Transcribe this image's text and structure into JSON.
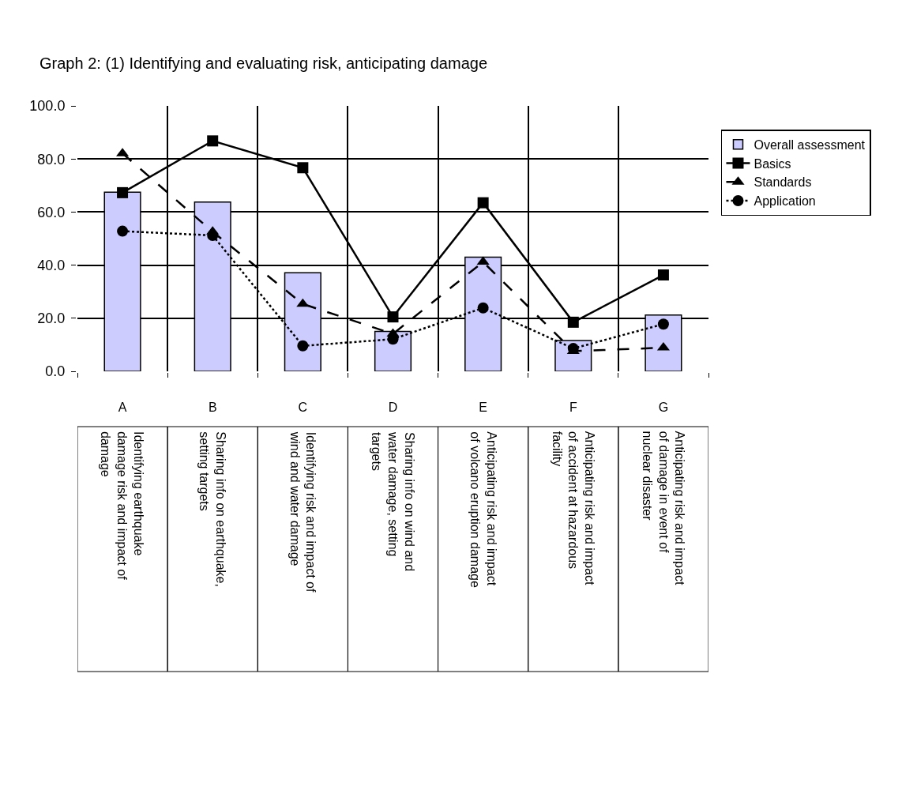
{
  "chart_data": {
    "type": "bar",
    "title": "Graph 2: (1) Identifying and evaluating risk, anticipating damage",
    "categories": [
      "A",
      "B",
      "C",
      "D",
      "E",
      "F",
      "G"
    ],
    "series": [
      {
        "name": "Overall assessment",
        "color": "#ccccff",
        "values": [
          67.5,
          63.8,
          37.1,
          15.0,
          43.0,
          11.6,
          21.2
        ]
      },
      {
        "name": "Basics",
        "type": "line",
        "color": "#000000",
        "marker": "square",
        "line_style": "solid",
        "values": [
          67.3,
          86.8,
          76.7,
          20.5,
          63.5,
          18.5,
          36.3
        ]
      },
      {
        "name": "Standards",
        "type": "line",
        "color": "#000000",
        "marker": "triangle",
        "line_style": "dashed",
        "values": [
          82.1,
          52.6,
          25.4,
          14.1,
          41.2,
          7.6,
          8.9
        ]
      },
      {
        "name": "Application",
        "type": "line",
        "color": "#000000",
        "marker": "circle",
        "line_style": "dotted",
        "values": [
          52.8,
          51.2,
          9.6,
          12.1,
          23.9,
          8.6,
          17.8
        ]
      }
    ],
    "ylim": [
      0,
      100
    ],
    "yticks": [
      {
        "value": 0,
        "label": "0.0"
      },
      {
        "value": 20,
        "label": "20.0"
      },
      {
        "value": 40,
        "label": "40.0"
      },
      {
        "value": 60,
        "label": "60.0"
      },
      {
        "value": 80,
        "label": "80.0"
      },
      {
        "value": 100,
        "label": "100.0"
      }
    ],
    "grid": true,
    "legend": "top right",
    "annotations": [
      "Identifying earthquake\ndamage risk and impact of\ndamage",
      "Sharing info on earthquake,\nsetting targets",
      "Identifying risk and impact of\nwind and water damage",
      "Sharing info on wind and\nwater damage, setting\ntargets",
      "Anticipating risk and impact\nof volcano eruption damage",
      "Anticipating risk and impact\nof accident at hazardous\nfacility",
      "Anticipating risk and impact\nof damage in event of\nnuclear disaster"
    ]
  }
}
